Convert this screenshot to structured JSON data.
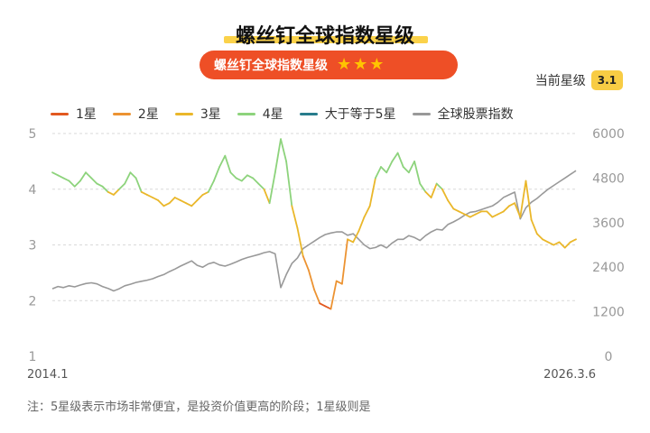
{
  "header": {
    "title": "螺丝钉全球指数星级",
    "pill_label": "螺丝钉全球指数星级",
    "stars": [
      "★",
      "★",
      "★"
    ]
  },
  "current": {
    "label": "当前星级",
    "value": "3.1"
  },
  "legend": [
    {
      "label": "1星",
      "color": "#e2581f"
    },
    {
      "label": "2星",
      "color": "#ec9332"
    },
    {
      "label": "3星",
      "color": "#eab72a"
    },
    {
      "label": "4星",
      "color": "#8dd37c"
    },
    {
      "label": "大于等于5星",
      "color": "#287c8c"
    },
    {
      "label": "全球股票指数",
      "color": "#999999"
    }
  ],
  "note": "注：5星级表示市场非常便宜，是投资价值更高的阶段；1星级则是",
  "chart_data": {
    "type": "line",
    "start_label": "2014.1",
    "end_label": "2026.3.6",
    "y_left": {
      "ticks": [
        "1",
        "2",
        "3",
        "4",
        "5"
      ],
      "range": [
        1,
        5
      ]
    },
    "y_right": {
      "ticks": [
        "0",
        "1200",
        "2400",
        "3600",
        "4800",
        "6000"
      ],
      "range": [
        0,
        6000
      ]
    },
    "grid": true,
    "series": [
      {
        "name": "星级",
        "axis": "left",
        "color_by_band": true,
        "values": [
          4.3,
          4.25,
          4.2,
          4.15,
          4.05,
          4.15,
          4.3,
          4.2,
          4.1,
          4.05,
          3.95,
          3.9,
          4.0,
          4.1,
          4.3,
          4.2,
          3.95,
          3.9,
          3.85,
          3.8,
          3.7,
          3.75,
          3.85,
          3.8,
          3.75,
          3.7,
          3.8,
          3.9,
          3.95,
          4.15,
          4.4,
          4.6,
          4.3,
          4.2,
          4.15,
          4.25,
          4.2,
          4.1,
          4.0,
          3.75,
          4.3,
          4.9,
          4.5,
          3.7,
          3.3,
          2.8,
          2.55,
          2.2,
          1.95,
          1.9,
          1.85,
          2.35,
          2.3,
          3.1,
          3.05,
          3.25,
          3.5,
          3.7,
          4.2,
          4.4,
          4.3,
          4.5,
          4.65,
          4.4,
          4.3,
          4.5,
          4.1,
          3.95,
          3.85,
          4.1,
          4.0,
          3.8,
          3.65,
          3.6,
          3.55,
          3.5,
          3.55,
          3.6,
          3.6,
          3.5,
          3.55,
          3.6,
          3.7,
          3.75,
          3.5,
          4.15,
          3.45,
          3.2,
          3.1,
          3.05,
          3.0,
          3.05,
          2.95,
          3.05,
          3.1
        ]
      },
      {
        "name": "全球股票指数",
        "axis": "right",
        "color": "#999999",
        "values": [
          1820,
          1880,
          1850,
          1900,
          1870,
          1920,
          1960,
          1980,
          1950,
          1880,
          1830,
          1760,
          1820,
          1900,
          1940,
          1990,
          2020,
          2050,
          2090,
          2150,
          2200,
          2280,
          2350,
          2430,
          2500,
          2570,
          2450,
          2400,
          2490,
          2530,
          2460,
          2430,
          2480,
          2540,
          2610,
          2660,
          2700,
          2740,
          2790,
          2820,
          2760,
          1850,
          2200,
          2500,
          2650,
          2900,
          3000,
          3100,
          3200,
          3280,
          3320,
          3350,
          3350,
          3260,
          3300,
          3150,
          3000,
          2900,
          2930,
          3000,
          2920,
          3050,
          3150,
          3150,
          3250,
          3200,
          3120,
          3250,
          3350,
          3420,
          3400,
          3550,
          3620,
          3700,
          3800,
          3880,
          3900,
          3950,
          4000,
          4050,
          4150,
          4280,
          4350,
          4420,
          3700,
          4000,
          4150,
          4250,
          4380,
          4500,
          4600,
          4700,
          4800,
          4900,
          5000
        ]
      }
    ]
  }
}
